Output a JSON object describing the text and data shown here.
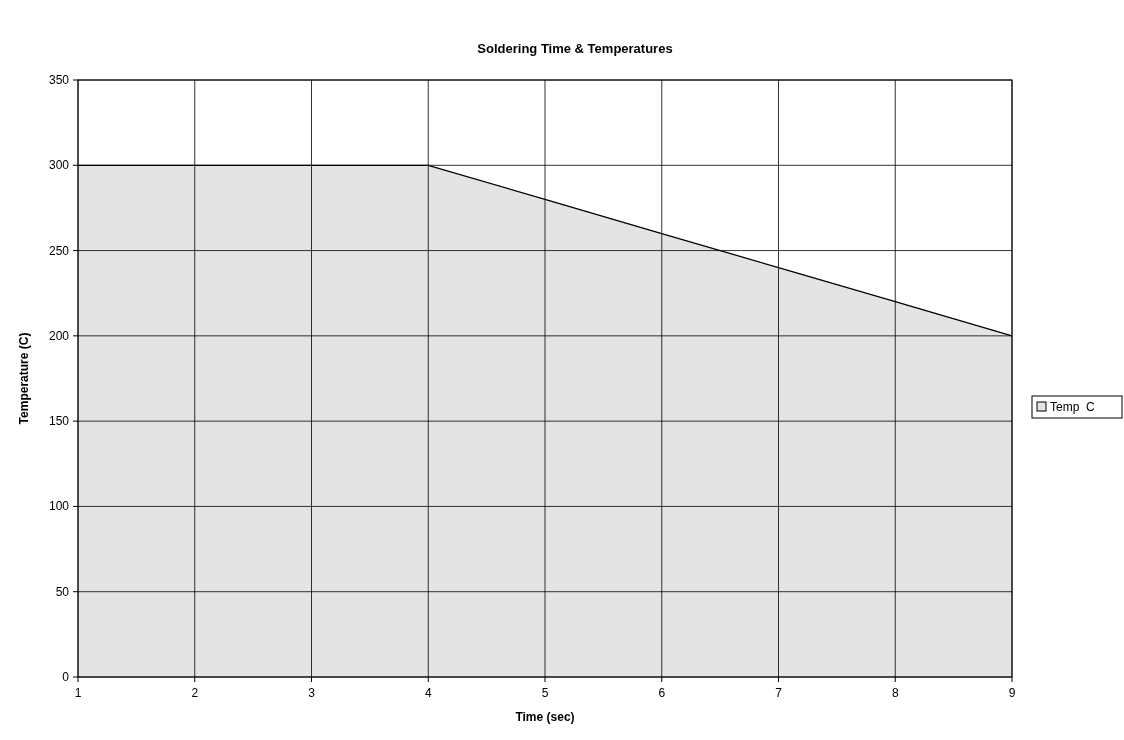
{
  "chart_data": {
    "type": "area",
    "title": "Soldering Time & Temperatures",
    "xlabel": "Time  (sec)",
    "ylabel": "Temperature  (C)",
    "x": [
      1,
      2,
      3,
      4,
      5,
      6,
      7,
      8,
      9
    ],
    "series": [
      {
        "name": "Temp  C",
        "color": "#e4e4e4",
        "values": [
          300,
          300,
          300,
          300,
          280,
          260,
          240,
          220,
          200
        ]
      }
    ],
    "xlim": [
      1,
      9
    ],
    "xticks": [
      1,
      2,
      3,
      4,
      5,
      6,
      7,
      8,
      9
    ],
    "ylim": [
      0,
      350
    ],
    "yticks": [
      0,
      50,
      100,
      150,
      200,
      250,
      300,
      350
    ],
    "grid": true,
    "legend": "right"
  }
}
